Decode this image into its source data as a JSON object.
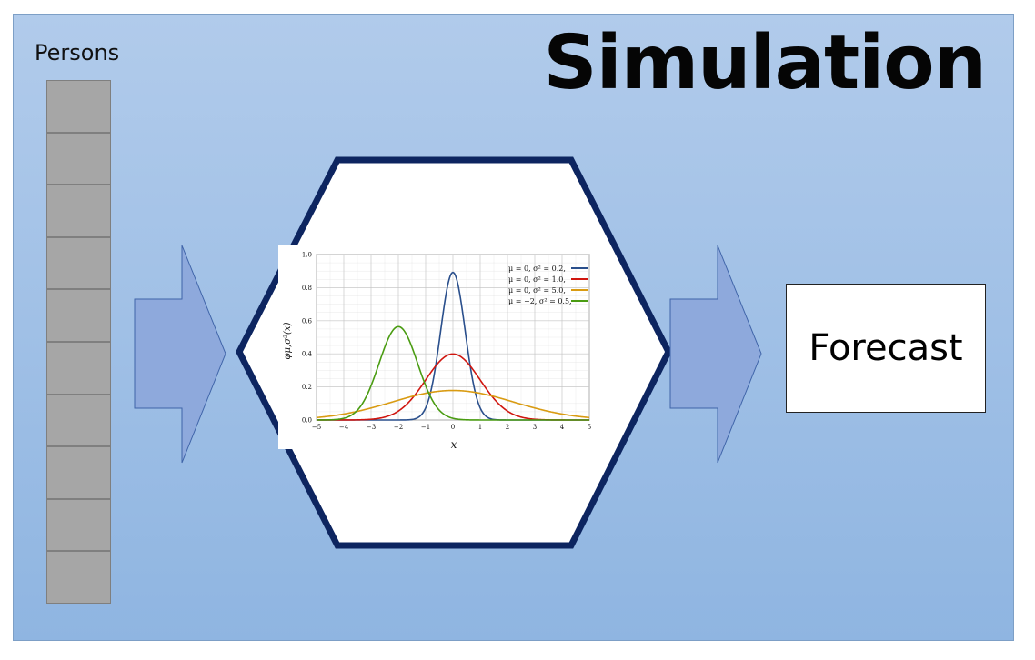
{
  "title": "Simulation",
  "persons": {
    "label": "Persons",
    "cell_count": 10
  },
  "forecast": {
    "label": "Forecast"
  },
  "colors": {
    "background_top": "#b1cbeb",
    "background_bottom": "#8fb5e1",
    "arrow_fill": "#8ea9dc",
    "arrow_stroke": "#3f64a8",
    "hexagon_stroke": "#0d2560",
    "person_cell": "#a6a6a6"
  },
  "chart_data": {
    "type": "line",
    "xlabel": "x",
    "ylabel": "φμ,σ²(x)",
    "xlim": [
      -5,
      5
    ],
    "ylim": [
      0,
      1.0
    ],
    "x_ticks": [
      -5,
      -4,
      -3,
      -2,
      -1,
      0,
      1,
      2,
      3,
      4,
      5
    ],
    "y_ticks": [
      0.0,
      0.2,
      0.4,
      0.6,
      0.8,
      1.0
    ],
    "x_tick_labels": [
      "−5",
      "−4",
      "−3",
      "−2",
      "−1",
      "0",
      "1",
      "2",
      "3",
      "4",
      "5"
    ],
    "y_tick_labels": [
      "0.0",
      "0.2",
      "0.4",
      "0.6",
      "0.8",
      "1.0"
    ],
    "grid": true,
    "legend_position": "top-right",
    "series": [
      {
        "name": "μ = 0,   σ² = 0.2,",
        "mu": 0,
        "variance": 0.2,
        "color": "#2a4f8c"
      },
      {
        "name": "μ = 0,   σ² = 1.0,",
        "mu": 0,
        "variance": 1.0,
        "color": "#d0160f"
      },
      {
        "name": "μ = 0,   σ² = 5.0,",
        "mu": 0,
        "variance": 5.0,
        "color": "#d99b12"
      },
      {
        "name": "μ = −2,  σ² = 0.5,",
        "mu": -2,
        "variance": 0.5,
        "color": "#4a9c12"
      }
    ]
  }
}
